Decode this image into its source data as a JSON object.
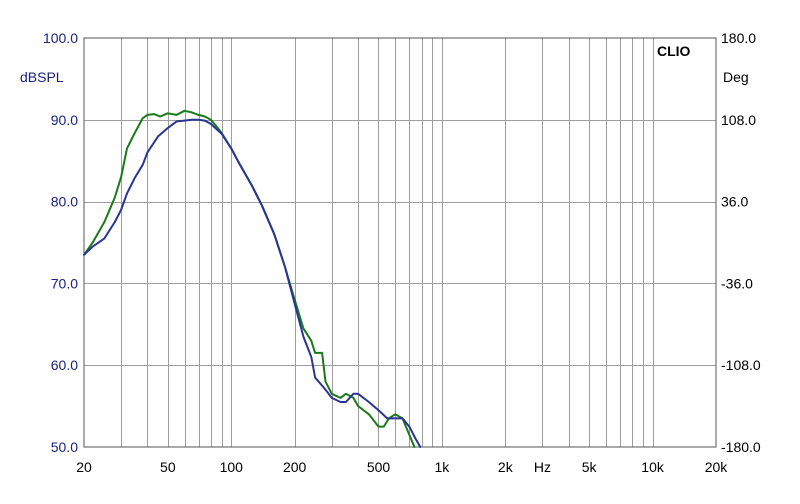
{
  "chart_data": {
    "type": "line",
    "brand": "CLIO",
    "ylabel_left": "dBSPL",
    "ylabel_right": "Deg",
    "xscale": "log",
    "xlim": [
      20,
      20000
    ],
    "ylim_left": [
      50,
      100
    ],
    "ylim_right": [
      -180,
      180
    ],
    "grid": true,
    "x_tick_labels": [
      {
        "value": 20,
        "label": "20"
      },
      {
        "value": 50,
        "label": "50"
      },
      {
        "value": 100,
        "label": "100"
      },
      {
        "value": 200,
        "label": "200"
      },
      {
        "value": 500,
        "label": "500"
      },
      {
        "value": 1000,
        "label": "1k"
      },
      {
        "value": 2000,
        "label": "2k"
      },
      {
        "value": 3000,
        "label": "Hz"
      },
      {
        "value": 5000,
        "label": "5k"
      },
      {
        "value": 10000,
        "label": "10k"
      },
      {
        "value": 20000,
        "label": "20k"
      }
    ],
    "y_left_ticks": [
      {
        "value": 100,
        "label": "100.0"
      },
      {
        "value": 90,
        "label": "90.0"
      },
      {
        "value": 80,
        "label": "80.0"
      },
      {
        "value": 70,
        "label": "70.0"
      },
      {
        "value": 60,
        "label": "60.0"
      },
      {
        "value": 50,
        "label": "50.0"
      }
    ],
    "y_right_ticks": [
      {
        "value": 180,
        "label": "180.0"
      },
      {
        "value": 108,
        "label": "108.0"
      },
      {
        "value": 36,
        "label": "36.0"
      },
      {
        "value": -36,
        "label": "-36.0"
      },
      {
        "value": -108,
        "label": "-108.0"
      },
      {
        "value": -180,
        "label": "-180.0"
      }
    ],
    "series": [
      {
        "color": "#1a7a1a",
        "points": [
          [
            20,
            73.5
          ],
          [
            22,
            75
          ],
          [
            25,
            77.5
          ],
          [
            28,
            80.5
          ],
          [
            30,
            83
          ],
          [
            32,
            86.5
          ],
          [
            35,
            88.5
          ],
          [
            38,
            90.2
          ],
          [
            40,
            90.6
          ],
          [
            43,
            90.7
          ],
          [
            46,
            90.4
          ],
          [
            50,
            90.8
          ],
          [
            55,
            90.6
          ],
          [
            60,
            91.1
          ],
          [
            65,
            90.9
          ],
          [
            70,
            90.6
          ],
          [
            75,
            90.4
          ],
          [
            80,
            90
          ],
          [
            85,
            89.2
          ],
          [
            90,
            88.4
          ],
          [
            100,
            86.5
          ],
          [
            110,
            84.5
          ],
          [
            125,
            82
          ],
          [
            140,
            79.5
          ],
          [
            160,
            76
          ],
          [
            180,
            72
          ],
          [
            200,
            68
          ],
          [
            220,
            64.5
          ],
          [
            240,
            63
          ],
          [
            250,
            61.5
          ],
          [
            270,
            61.5
          ],
          [
            280,
            58
          ],
          [
            300,
            56.5
          ],
          [
            330,
            56
          ],
          [
            350,
            56.5
          ],
          [
            380,
            56
          ],
          [
            400,
            55
          ],
          [
            450,
            54
          ],
          [
            500,
            52.5
          ],
          [
            530,
            52.5
          ],
          [
            560,
            53.5
          ],
          [
            600,
            54
          ],
          [
            650,
            53.5
          ],
          [
            700,
            51.5
          ],
          [
            740,
            50
          ]
        ]
      },
      {
        "color": "#283593",
        "points": [
          [
            20,
            73.5
          ],
          [
            22,
            74.5
          ],
          [
            25,
            75.5
          ],
          [
            28,
            77.5
          ],
          [
            30,
            79
          ],
          [
            32,
            81
          ],
          [
            35,
            83
          ],
          [
            38,
            84.5
          ],
          [
            40,
            86
          ],
          [
            45,
            88
          ],
          [
            50,
            89
          ],
          [
            55,
            89.8
          ],
          [
            60,
            89.9
          ],
          [
            65,
            90
          ],
          [
            70,
            90
          ],
          [
            75,
            89.9
          ],
          [
            80,
            89.5
          ],
          [
            90,
            88.3
          ],
          [
            100,
            86.5
          ],
          [
            110,
            84.5
          ],
          [
            125,
            82
          ],
          [
            140,
            79.5
          ],
          [
            160,
            76
          ],
          [
            180,
            72
          ],
          [
            200,
            67.5
          ],
          [
            220,
            63.5
          ],
          [
            240,
            61
          ],
          [
            250,
            58.5
          ],
          [
            270,
            57.5
          ],
          [
            280,
            57
          ],
          [
            300,
            56
          ],
          [
            330,
            55.5
          ],
          [
            350,
            55.5
          ],
          [
            380,
            56.5
          ],
          [
            400,
            56.5
          ],
          [
            450,
            55.5
          ],
          [
            500,
            54.5
          ],
          [
            550,
            53.5
          ],
          [
            600,
            53.5
          ],
          [
            650,
            53.5
          ],
          [
            700,
            52.5
          ],
          [
            750,
            51
          ],
          [
            790,
            50
          ]
        ]
      }
    ]
  }
}
